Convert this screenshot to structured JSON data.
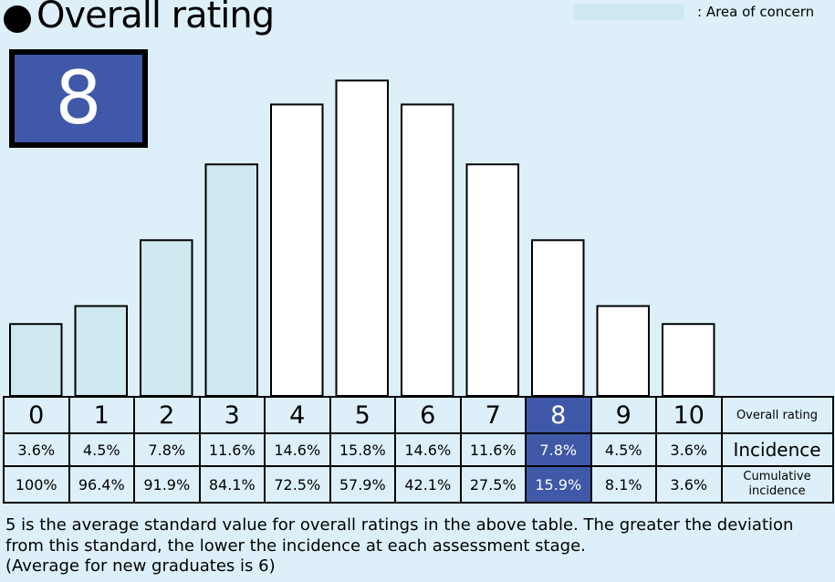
{
  "header": {
    "title": "Overall rating",
    "legend_label": ": Area of concern",
    "score": "8"
  },
  "colors": {
    "background": "#ddf0fa",
    "concern_fill": "#cfe9f0",
    "normal_fill": "#ffffff",
    "highlight": "#3f58a8"
  },
  "chart_data": {
    "type": "bar",
    "categories": [
      "0",
      "1",
      "2",
      "3",
      "4",
      "5",
      "6",
      "7",
      "8",
      "9",
      "10"
    ],
    "values": [
      3.6,
      4.5,
      7.8,
      11.6,
      14.6,
      15.8,
      14.6,
      11.6,
      7.8,
      4.5,
      3.6
    ],
    "area_of_concern": [
      "0",
      "1",
      "2",
      "3"
    ],
    "highlighted_category": "8",
    "ylim": [
      0,
      17
    ],
    "grid": false
  },
  "table": {
    "rating_label": "Overall rating",
    "incidence_label": "Incidence",
    "cumulative_label": "Cumulative incidence",
    "ratings": [
      "0",
      "1",
      "2",
      "3",
      "4",
      "5",
      "6",
      "7",
      "8",
      "9",
      "10"
    ],
    "incidence": [
      "3.6%",
      "4.5%",
      "7.8%",
      "11.6%",
      "14.6%",
      "15.8%",
      "14.6%",
      "11.6%",
      "7.8%",
      "4.5%",
      "3.6%"
    ],
    "cumulative": [
      "100%",
      "96.4%",
      "91.9%",
      "84.1%",
      "72.5%",
      "57.9%",
      "42.1%",
      "27.5%",
      "15.9%",
      "8.1%",
      "3.6%"
    ]
  },
  "footnote": {
    "line1": "5 is the average standard value for overall ratings in the above table. The greater the deviation from this standard, the lower the incidence at each assessment stage.",
    "line2": " (Average for new graduates is 6)"
  }
}
